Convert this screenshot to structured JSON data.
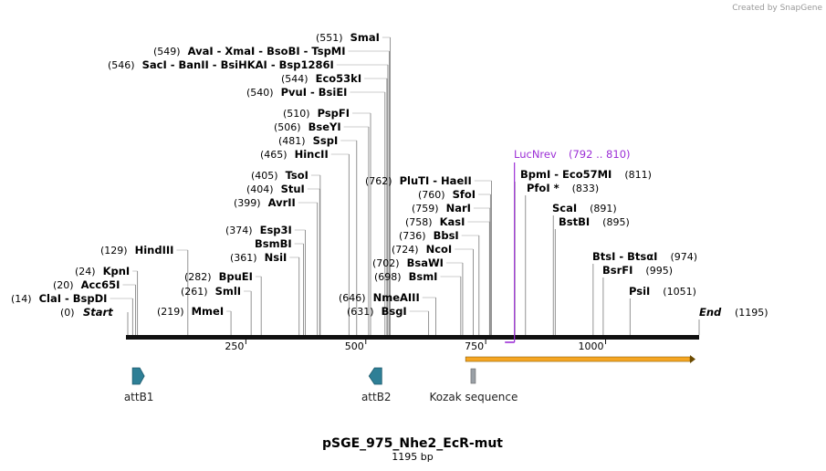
{
  "credit": "Created by SnapGene",
  "title": "pSGE_975_Nhe2_EcR-mut",
  "length_label": "1195 bp",
  "sequence_length": 1195,
  "ticks": [
    "250",
    "500",
    "750",
    "1000"
  ],
  "tick_positions": [
    250,
    500,
    750,
    1000
  ],
  "start_label": {
    "pos": "(0)",
    "name": "Start"
  },
  "end_label": {
    "pos": "(1195)",
    "name": "End"
  },
  "sites": [
    {
      "name": "ClaI - BspDI",
      "pos": "(14)",
      "bp": 14
    },
    {
      "name": "Acc65I",
      "pos": "(20)",
      "bp": 20
    },
    {
      "name": "KpnI",
      "pos": "(24)",
      "bp": 24
    },
    {
      "name": "HindIII",
      "pos": "(129)",
      "bp": 129
    },
    {
      "name": "MmeI",
      "pos": "(219)",
      "bp": 219
    },
    {
      "name": "SmlI",
      "pos": "(261)",
      "bp": 261
    },
    {
      "name": "BpuEI",
      "pos": "(282)",
      "bp": 282
    },
    {
      "name": "NsiI",
      "pos": "(361)",
      "bp": 361
    },
    {
      "name": "BsmBI",
      "pos": "",
      "bp": 370
    },
    {
      "name": "Esp3I",
      "pos": "(374)",
      "bp": 374
    },
    {
      "name": "AvrII",
      "pos": "(399)",
      "bp": 399
    },
    {
      "name": "StuI",
      "pos": "(404)",
      "bp": 404
    },
    {
      "name": "TsoI",
      "pos": "(405)",
      "bp": 405
    },
    {
      "name": "HincII",
      "pos": "(465)",
      "bp": 465
    },
    {
      "name": "SspI",
      "pos": "(481)",
      "bp": 481
    },
    {
      "name": "BseYI",
      "pos": "(506)",
      "bp": 506
    },
    {
      "name": "PspFI",
      "pos": "(510)",
      "bp": 510
    },
    {
      "name": "PvuI - BsiEI",
      "pos": "(540)",
      "bp": 540
    },
    {
      "name": "Eco53kI",
      "pos": "(544)",
      "bp": 544
    },
    {
      "name": "SacI - BanII - BsiHKAI - Bsp1286I",
      "pos": "(546)",
      "bp": 546
    },
    {
      "name": "AvaI - XmaI - BsoBI - TspMI",
      "pos": "(549)",
      "bp": 549
    },
    {
      "name": "SmaI",
      "pos": "(551)",
      "bp": 551
    },
    {
      "name": "BsgI",
      "pos": "(631)",
      "bp": 631
    },
    {
      "name": "NmeAIII",
      "pos": "(646)",
      "bp": 646
    },
    {
      "name": "BsmI",
      "pos": "(698)",
      "bp": 698
    },
    {
      "name": "BsaWI",
      "pos": "(702)",
      "bp": 702
    },
    {
      "name": "NcoI",
      "pos": "(724)",
      "bp": 724
    },
    {
      "name": "BbsI",
      "pos": "(736)",
      "bp": 736
    },
    {
      "name": "KasI",
      "pos": "(758)",
      "bp": 758
    },
    {
      "name": "NarI",
      "pos": "(759)",
      "bp": 759
    },
    {
      "name": "SfoI",
      "pos": "(760)",
      "bp": 760
    },
    {
      "name": "PluTI - HaeII",
      "pos": "(762)",
      "bp": 762
    },
    {
      "name": "BpmI - Eco57MI",
      "pos": "(811)",
      "bp": 811
    },
    {
      "name": "PfoI *",
      "pos": "(833)",
      "bp": 833
    },
    {
      "name": "ScaI",
      "pos": "(891)",
      "bp": 891
    },
    {
      "name": "BstBI",
      "pos": "(895)",
      "bp": 895
    },
    {
      "name": "BtsI - BtsαI",
      "pos": "(974)",
      "bp": 974
    },
    {
      "name": "BsrFI",
      "pos": "(995)",
      "bp": 995
    },
    {
      "name": "PsiI",
      "pos": "(1051)",
      "bp": 1051
    }
  ],
  "primer": {
    "name": "LucNrev",
    "range": "(792 .. 810)",
    "start": 792,
    "end": 810
  },
  "features": [
    {
      "name": "attB1",
      "type": "arrow-right",
      "bp": 25,
      "color": "#2e7f96"
    },
    {
      "name": "attB2",
      "type": "arrow-left",
      "bp": 520,
      "color": "#2e7f96"
    },
    {
      "name": "Kozak sequence",
      "type": "box",
      "bp": 723,
      "color": "#9aa0a6"
    }
  ],
  "orf": {
    "start": 731,
    "end": 1195,
    "color": "#f5a623"
  }
}
